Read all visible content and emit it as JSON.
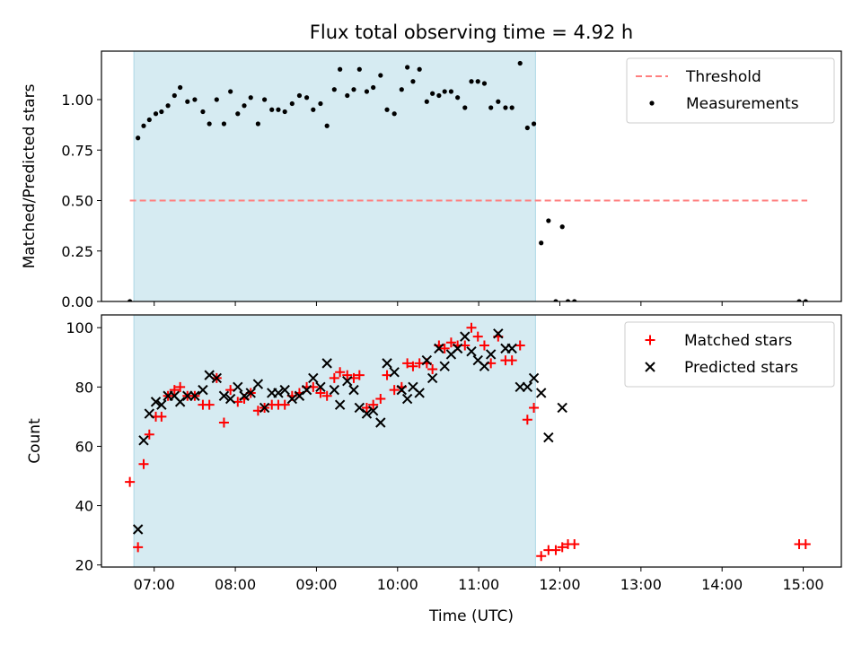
{
  "chart_data": {
    "title": "Flux total observing time = 4.92 h",
    "xlabel": "Time (UTC)",
    "x_unit": "hours UTC",
    "x_ticks": [
      {
        "value": 7,
        "label": "07:00"
      },
      {
        "value": 8,
        "label": "08:00"
      },
      {
        "value": 9,
        "label": "09:00"
      },
      {
        "value": 10,
        "label": "10:00"
      },
      {
        "value": 11,
        "label": "11:00"
      },
      {
        "value": 12,
        "label": "12:00"
      },
      {
        "value": 13,
        "label": "13:00"
      },
      {
        "value": 14,
        "label": "14:00"
      },
      {
        "value": 15,
        "label": "15:00"
      }
    ],
    "xlim": [
      6.35,
      15.47
    ],
    "shaded_span": [
      6.75,
      11.7
    ],
    "shade_color": "#add8e6",
    "panels": [
      {
        "id": "ratio",
        "type": "scatter",
        "ylabel": "Matched/Predicted stars",
        "ylim": [
          0,
          1.24
        ],
        "yticks": [
          {
            "value": 0.0,
            "label": "0.00"
          },
          {
            "value": 0.25,
            "label": "0.25"
          },
          {
            "value": 0.5,
            "label": "0.50"
          },
          {
            "value": 0.75,
            "label": "0.75"
          },
          {
            "value": 1.0,
            "label": "1.00"
          }
        ],
        "legend_position": "top-right",
        "threshold": {
          "name": "Threshold",
          "value": 0.5,
          "x_range": [
            6.7,
            15.05
          ],
          "color": "#ff7f7f",
          "style": "dashed"
        },
        "series": [
          {
            "name": "Measurements",
            "color": "#000000",
            "marker": "dot",
            "points": [
              [
                6.7,
                0.0
              ],
              [
                6.8,
                0.81
              ],
              [
                6.87,
                0.87
              ],
              [
                6.94,
                0.9
              ],
              [
                7.02,
                0.93
              ],
              [
                7.09,
                0.94
              ],
              [
                7.17,
                0.97
              ],
              [
                7.25,
                1.02
              ],
              [
                7.32,
                1.06
              ],
              [
                7.41,
                0.99
              ],
              [
                7.5,
                1.0
              ],
              [
                7.6,
                0.94
              ],
              [
                7.68,
                0.88
              ],
              [
                7.77,
                1.0
              ],
              [
                7.86,
                0.88
              ],
              [
                7.94,
                1.04
              ],
              [
                8.03,
                0.93
              ],
              [
                8.11,
                0.97
              ],
              [
                8.19,
                1.01
              ],
              [
                8.28,
                0.88
              ],
              [
                8.36,
                1.0
              ],
              [
                8.45,
                0.95
              ],
              [
                8.53,
                0.95
              ],
              [
                8.61,
                0.94
              ],
              [
                8.7,
                0.98
              ],
              [
                8.79,
                1.02
              ],
              [
                8.88,
                1.01
              ],
              [
                8.96,
                0.95
              ],
              [
                9.05,
                0.98
              ],
              [
                9.13,
                0.87
              ],
              [
                9.22,
                1.05
              ],
              [
                9.29,
                1.15
              ],
              [
                9.38,
                1.02
              ],
              [
                9.46,
                1.05
              ],
              [
                9.53,
                1.15
              ],
              [
                9.62,
                1.04
              ],
              [
                9.7,
                1.06
              ],
              [
                9.79,
                1.12
              ],
              [
                9.87,
                0.95
              ],
              [
                9.96,
                0.93
              ],
              [
                10.05,
                1.05
              ],
              [
                10.12,
                1.16
              ],
              [
                10.19,
                1.09
              ],
              [
                10.27,
                1.15
              ],
              [
                10.36,
                0.99
              ],
              [
                10.43,
                1.03
              ],
              [
                10.51,
                1.02
              ],
              [
                10.58,
                1.04
              ],
              [
                10.66,
                1.04
              ],
              [
                10.74,
                1.01
              ],
              [
                10.83,
                0.96
              ],
              [
                10.91,
                1.09
              ],
              [
                10.99,
                1.09
              ],
              [
                11.07,
                1.08
              ],
              [
                11.15,
                0.96
              ],
              [
                11.24,
                0.99
              ],
              [
                11.33,
                0.96
              ],
              [
                11.41,
                0.96
              ],
              [
                11.51,
                1.18
              ],
              [
                11.6,
                0.86
              ],
              [
                11.68,
                0.88
              ],
              [
                11.77,
                0.29
              ],
              [
                11.86,
                0.4
              ],
              [
                11.95,
                0.0
              ],
              [
                12.03,
                0.37
              ],
              [
                12.1,
                0.0
              ],
              [
                12.18,
                0.0
              ],
              [
                14.95,
                0.0
              ],
              [
                15.03,
                0.0
              ]
            ]
          }
        ]
      },
      {
        "id": "counts",
        "type": "scatter",
        "ylabel": "Count",
        "ylim": [
          19.3,
          104.3
        ],
        "yticks": [
          {
            "value": 20,
            "label": "20"
          },
          {
            "value": 40,
            "label": "40"
          },
          {
            "value": 60,
            "label": "60"
          },
          {
            "value": 80,
            "label": "80"
          },
          {
            "value": 100,
            "label": "100"
          }
        ],
        "legend_position": "top-right",
        "series": [
          {
            "name": "Matched stars",
            "color": "#ff0000",
            "marker": "plus",
            "points": [
              [
                6.7,
                48
              ],
              [
                6.8,
                26
              ],
              [
                6.87,
                54
              ],
              [
                6.94,
                64
              ],
              [
                7.02,
                70
              ],
              [
                7.09,
                70
              ],
              [
                7.17,
                77
              ],
              [
                7.25,
                79
              ],
              [
                7.32,
                80
              ],
              [
                7.41,
                77
              ],
              [
                7.5,
                77
              ],
              [
                7.6,
                74
              ],
              [
                7.68,
                74
              ],
              [
                7.77,
                83
              ],
              [
                7.86,
                68
              ],
              [
                7.94,
                79
              ],
              [
                8.03,
                75
              ],
              [
                8.11,
                76
              ],
              [
                8.19,
                78
              ],
              [
                8.28,
                72
              ],
              [
                8.36,
                73
              ],
              [
                8.45,
                74
              ],
              [
                8.53,
                74
              ],
              [
                8.61,
                74
              ],
              [
                8.7,
                77
              ],
              [
                8.79,
                78
              ],
              [
                8.88,
                80
              ],
              [
                8.96,
                80
              ],
              [
                9.05,
                78
              ],
              [
                9.13,
                77
              ],
              [
                9.22,
                83
              ],
              [
                9.29,
                85
              ],
              [
                9.38,
                84
              ],
              [
                9.46,
                83
              ],
              [
                9.53,
                84
              ],
              [
                9.62,
                73
              ],
              [
                9.7,
                74
              ],
              [
                9.79,
                76
              ],
              [
                9.87,
                84
              ],
              [
                9.96,
                79
              ],
              [
                10.05,
                80
              ],
              [
                10.12,
                88
              ],
              [
                10.19,
                87
              ],
              [
                10.27,
                88
              ],
              [
                10.36,
                88
              ],
              [
                10.43,
                86
              ],
              [
                10.51,
                94
              ],
              [
                10.58,
                93
              ],
              [
                10.66,
                95
              ],
              [
                10.74,
                94
              ],
              [
                10.83,
                94
              ],
              [
                10.91,
                100
              ],
              [
                10.99,
                97
              ],
              [
                11.07,
                94
              ],
              [
                11.15,
                88
              ],
              [
                11.24,
                97
              ],
              [
                11.33,
                89
              ],
              [
                11.41,
                89
              ],
              [
                11.51,
                94
              ],
              [
                11.6,
                69
              ],
              [
                11.68,
                73
              ],
              [
                11.77,
                23
              ],
              [
                11.86,
                25
              ],
              [
                11.95,
                25
              ],
              [
                12.03,
                26
              ],
              [
                12.1,
                27
              ],
              [
                12.18,
                27
              ],
              [
                14.95,
                27
              ],
              [
                15.03,
                27
              ]
            ]
          },
          {
            "name": "Predicted stars",
            "color": "#000000",
            "marker": "x",
            "points": [
              [
                6.8,
                32
              ],
              [
                6.87,
                62
              ],
              [
                6.94,
                71
              ],
              [
                7.02,
                75
              ],
              [
                7.09,
                74
              ],
              [
                7.17,
                77
              ],
              [
                7.25,
                77
              ],
              [
                7.32,
                75
              ],
              [
                7.41,
                77
              ],
              [
                7.5,
                77
              ],
              [
                7.6,
                79
              ],
              [
                7.68,
                84
              ],
              [
                7.77,
                83
              ],
              [
                7.86,
                77
              ],
              [
                7.94,
                76
              ],
              [
                8.03,
                80
              ],
              [
                8.11,
                77
              ],
              [
                8.19,
                78
              ],
              [
                8.28,
                81
              ],
              [
                8.36,
                73
              ],
              [
                8.45,
                78
              ],
              [
                8.53,
                78
              ],
              [
                8.61,
                79
              ],
              [
                8.7,
                76
              ],
              [
                8.79,
                77
              ],
              [
                8.88,
                79
              ],
              [
                8.96,
                83
              ],
              [
                9.05,
                80
              ],
              [
                9.13,
                88
              ],
              [
                9.22,
                79
              ],
              [
                9.29,
                74
              ],
              [
                9.38,
                82
              ],
              [
                9.46,
                79
              ],
              [
                9.53,
                73
              ],
              [
                9.62,
                71
              ],
              [
                9.7,
                72
              ],
              [
                9.79,
                68
              ],
              [
                9.87,
                88
              ],
              [
                9.96,
                85
              ],
              [
                10.05,
                79
              ],
              [
                10.12,
                76
              ],
              [
                10.19,
                80
              ],
              [
                10.27,
                78
              ],
              [
                10.36,
                89
              ],
              [
                10.43,
                83
              ],
              [
                10.51,
                93
              ],
              [
                10.58,
                87
              ],
              [
                10.66,
                91
              ],
              [
                10.74,
                93
              ],
              [
                10.83,
                97
              ],
              [
                10.91,
                92
              ],
              [
                10.99,
                89
              ],
              [
                11.07,
                87
              ],
              [
                11.15,
                91
              ],
              [
                11.24,
                98
              ],
              [
                11.33,
                93
              ],
              [
                11.41,
                93
              ],
              [
                11.51,
                80
              ],
              [
                11.6,
                80
              ],
              [
                11.68,
                83
              ],
              [
                11.77,
                78
              ],
              [
                11.86,
                63
              ],
              [
                12.03,
                73
              ]
            ]
          }
        ]
      }
    ]
  }
}
